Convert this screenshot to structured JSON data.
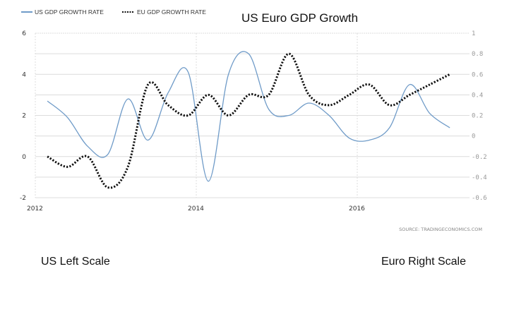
{
  "chart_data": {
    "type": "line",
    "title": "US Euro GDP Growth",
    "source": "SOURCE: TRADINGECONOMICS.COM",
    "notes": {
      "left": "US Left Scale",
      "right": "Euro Right Scale"
    },
    "xlabel": "",
    "x_ticks": [
      "2012",
      "2014",
      "2016"
    ],
    "x_range": [
      2012,
      2017.6
    ],
    "y_left": {
      "ticks": [
        "6",
        "4",
        "2",
        "0",
        "-2"
      ],
      "range": [
        -2,
        6
      ]
    },
    "y_right": {
      "ticks": [
        "1",
        "0.8",
        "0.6",
        "0.4",
        "0.2",
        "0",
        "-0.2",
        "-0.4",
        "-0.6"
      ],
      "range": [
        -0.6,
        1
      ]
    },
    "grid": true,
    "legend_position": "top-left",
    "x": [
      2012.15,
      2012.4,
      2012.65,
      2012.9,
      2013.15,
      2013.4,
      2013.65,
      2013.9,
      2014.15,
      2014.4,
      2014.65,
      2014.9,
      2015.15,
      2015.4,
      2015.65,
      2015.9,
      2016.15,
      2016.4,
      2016.65,
      2016.9,
      2017.15
    ],
    "series": [
      {
        "name": "US GDP GROWTH RATE",
        "axis": "left",
        "style": "solid",
        "color": "#6f9bc8",
        "values": [
          2.7,
          1.9,
          0.5,
          0.1,
          2.8,
          0.8,
          3.1,
          4.1,
          -1.2,
          4.0,
          5.0,
          2.3,
          2.0,
          2.6,
          2.0,
          0.9,
          0.8,
          1.4,
          3.5,
          2.1,
          1.4
        ]
      },
      {
        "name": "EU GDP GROWTH RATE",
        "axis": "right",
        "style": "dotted",
        "color": "#111111",
        "values": [
          -0.2,
          -0.3,
          -0.2,
          -0.5,
          -0.3,
          0.5,
          0.3,
          0.2,
          0.4,
          0.2,
          0.4,
          0.4,
          0.8,
          0.4,
          0.3,
          0.4,
          0.5,
          0.3,
          0.4,
          0.5,
          0.6
        ]
      }
    ]
  }
}
